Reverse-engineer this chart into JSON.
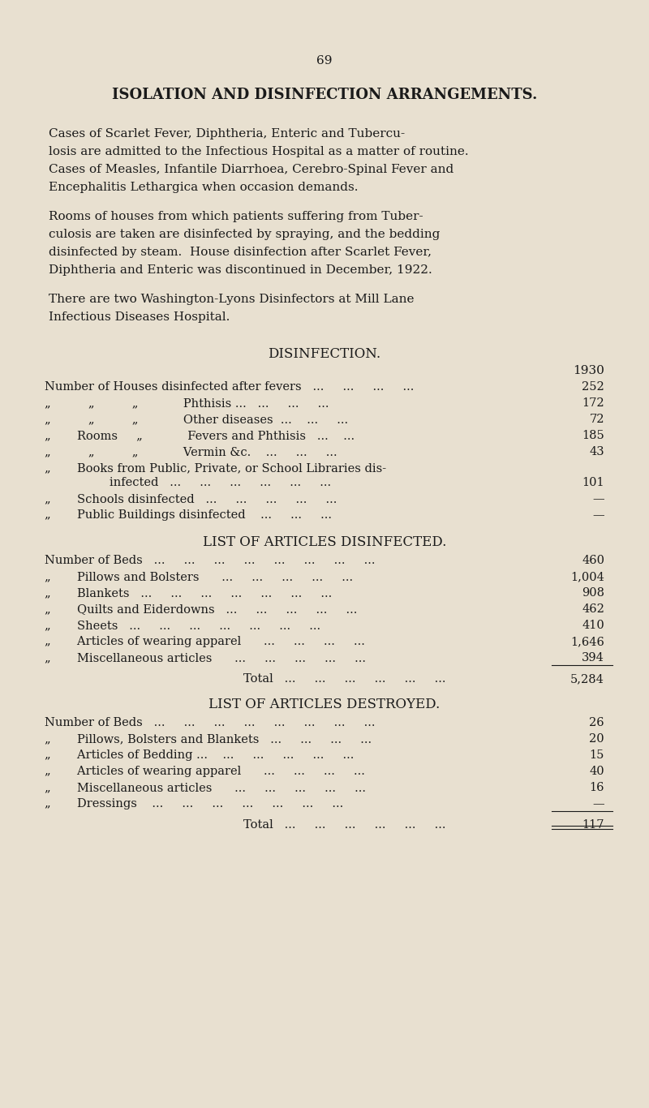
{
  "page_number": "69",
  "bg_color": "#e8e0d0",
  "text_color": "#1a1a1a",
  "title": "ISOLATION AND DISINFECTION ARRANGEMENTS.",
  "para1": "Cases of Scarlet Fever, Diphtheria, Enteric and Tubercu-\nlosis are admitted to the Infectious Hospital as a matter of routine.\nCases of Measles, Infantile Diarrhoea, Cerebro-Spinal Fever and\nEncephalitis Lethargica when occasion demands.",
  "para2": "Rooms of houses from which patients suffering from Tuber-\nculosis are taken are disinfected by spraying, and the bedding\ndisinfected by steam.  House disinfection after Scarlet Fever,\nDiphtheria and Enteric was discontinued in December, 1922.",
  "para3": "There are two Washington-Lyons Disinfectors at Mill Lane\nInfectious Diseases Hospital.",
  "disinfection_title": "DISINFECTION.",
  "year_label": "1930",
  "disinfection_rows": [
    {
      "label": "Number of Houses disinfected after fevers   ...     ...     ...     ...",
      "value": "252"
    },
    {
      "label": "„          „          „       Phthisis ...   ...     ...     ...",
      "value": "172"
    },
    {
      "label": "„          „          „       Other diseases  ...    ...     ...",
      "value": "72"
    },
    {
      "label": "„       Rooms    „       Fevers and Phthisis   ...    ...",
      "value": "185"
    },
    {
      "label": "„          „          „       Vermin &c.    ...     ...     ...",
      "value": "43"
    },
    {
      "label": "„       Books from Public, Private, or School Libraries dis-\n                 infected   ...     ...     ...     ...     ...     ...",
      "value": "101"
    },
    {
      "label": "„       Schools disinfected   ...     ...     ...     ...     ...",
      "value": "—"
    },
    {
      "label": "„       Public Buildings disinfected    ...     ...     ...",
      "value": "—"
    }
  ],
  "disinfected_title": "LIST OF ARTICLES DISINFECTED.",
  "disinfected_rows": [
    {
      "label": "Number of Beds   ...     ...     ...     ...     ...     ...     ...     ...",
      "value": "460"
    },
    {
      "label": "„       Pillows and Bolsters      ...     ...     ...     ...     ...",
      "value": "1,004"
    },
    {
      "label": "„       Blankets   ...     ...     ...     ...     ...     ...     ...",
      "value": "908"
    },
    {
      "label": "„       Quilts and Eiderdowns   ...     ...     ...     ...     ...",
      "value": "462"
    },
    {
      "label": "„       Sheets   ...     ...     ...     ...     ...     ...     ...",
      "value": "410"
    },
    {
      "label": "„       Articles of wearing apparel      ...     ...     ...     ...",
      "value": "1,646"
    },
    {
      "label": "„       Miscellaneous articles      ...     ...     ...     ...     ...",
      "value": "394"
    }
  ],
  "disinfected_total": "5,284",
  "destroyed_title": "LIST OF ARTICLES DESTROYED.",
  "destroyed_rows": [
    {
      "label": "Number of Beds   ...     ...     ...     ...     ...     ...     ...     ...",
      "value": "26"
    },
    {
      "label": "„       Pillows, Bolsters and Blankets   ...     ...     ...     ...",
      "value": "20"
    },
    {
      "label": "„       Articles of Bedding ...    ...     ...     ...     ...     ...",
      "value": "15"
    },
    {
      "label": "„       Articles of wearing apparel      ...     ...     ...     ...",
      "value": "40"
    },
    {
      "label": "„       Miscellaneous articles      ...     ...     ...     ...     ...",
      "value": "16"
    },
    {
      "label": "„       Dressings    ...     ...     ...     ...     ...     ...     ...",
      "value": "—"
    }
  ],
  "destroyed_total": "117"
}
